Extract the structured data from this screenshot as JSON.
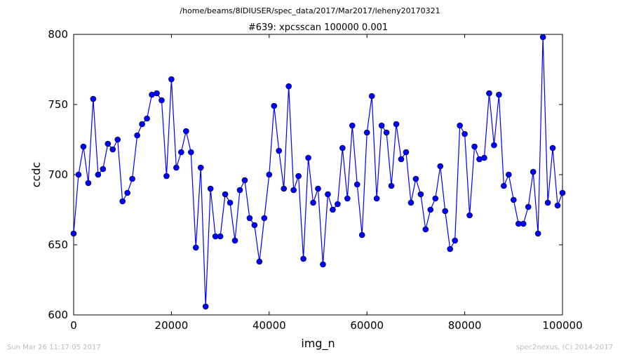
{
  "suptitle": "/home/beams/8IDIUSER/spec_data/2017/Mar2017/leheny20170321",
  "footer_left": "Sun Mar 26 11:17:05 2017",
  "footer_right": "spec2nexus, (C) 2014-2017",
  "colors": {
    "series": "#0000ff",
    "axes": "#000000",
    "footer": "#bbbbbb"
  },
  "chart_data": {
    "type": "line",
    "title": "#639: xpcsscan 100000 0.001",
    "xlabel": "img_n",
    "ylabel": "ccdc",
    "xlim": [
      0,
      100000
    ],
    "ylim": [
      600,
      800
    ],
    "xticks": [
      0,
      20000,
      40000,
      60000,
      80000,
      100000
    ],
    "yticks": [
      600,
      650,
      700,
      750,
      800
    ],
    "xtick_labels": [
      "0",
      "20000",
      "40000",
      "60000",
      "80000",
      "100000"
    ],
    "ytick_labels": [
      "600",
      "650",
      "700",
      "750",
      "800"
    ],
    "grid": false,
    "legend": "none",
    "marker": "circle",
    "series": [
      {
        "x": [
          0,
          1000,
          2000,
          3000,
          4000,
          5000,
          6000,
          7000,
          8000,
          9000,
          10000,
          11000,
          12000,
          13000,
          14000,
          15000,
          16000,
          17000,
          18000,
          19000,
          20000,
          21000,
          22000,
          23000,
          24000,
          25000,
          26000,
          27000,
          28000,
          29000,
          30000,
          31000,
          32000,
          33000,
          34000,
          35000,
          36000,
          37000,
          38000,
          39000,
          40000,
          41000,
          42000,
          43000,
          44000,
          45000,
          46000,
          47000,
          48000,
          49000,
          50000,
          51000,
          52000,
          53000,
          54000,
          55000,
          56000,
          57000,
          58000,
          59000,
          60000,
          61000,
          62000,
          63000,
          64000,
          65000,
          66000,
          67000,
          68000,
          69000,
          70000,
          71000,
          72000,
          73000,
          74000,
          75000,
          76000,
          77000,
          78000,
          79000,
          80000,
          81000,
          82000,
          83000,
          84000,
          85000,
          86000,
          87000,
          88000,
          89000,
          90000,
          91000,
          92000,
          93000,
          94000,
          95000,
          96000,
          97000,
          98000,
          99000,
          100000
        ],
        "values": [
          658,
          700,
          720,
          694,
          754,
          700,
          704,
          722,
          718,
          725,
          681,
          687,
          697,
          728,
          736,
          740,
          757,
          758,
          753,
          699,
          768,
          705,
          716,
          731,
          716,
          648,
          705,
          606,
          690,
          656,
          656,
          686,
          680,
          653,
          689,
          696,
          669,
          664,
          638,
          669,
          700,
          749,
          717,
          690,
          763,
          689,
          699,
          640,
          712,
          680,
          690,
          636,
          686,
          675,
          679,
          719,
          683,
          735,
          693,
          657,
          730,
          756,
          683,
          735,
          730,
          692,
          736,
          711,
          716,
          680,
          697,
          686,
          661,
          675,
          683,
          706,
          674,
          647,
          653,
          735,
          729,
          671,
          720,
          711,
          712,
          758,
          721,
          757,
          692,
          700,
          682,
          665,
          665,
          677,
          702,
          658,
          798,
          680,
          719,
          678,
          687
        ]
      }
    ]
  }
}
